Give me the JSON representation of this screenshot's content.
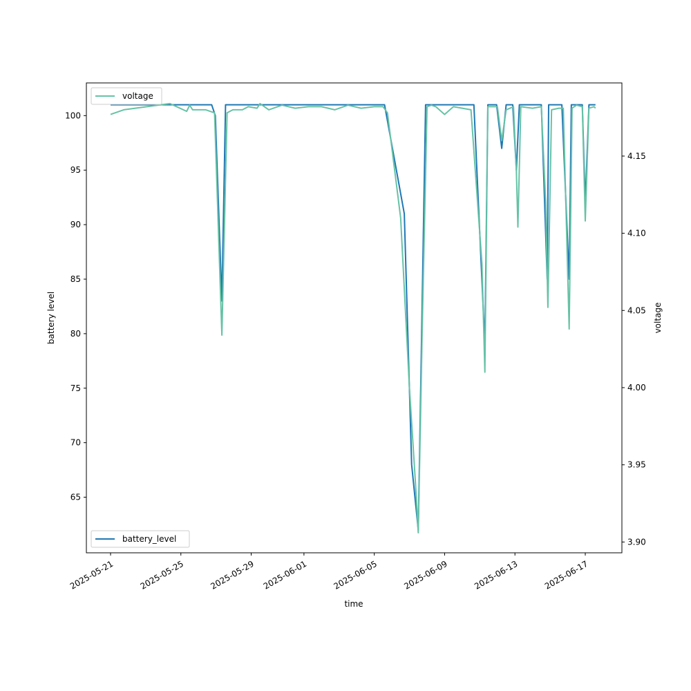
{
  "chart_data": {
    "type": "line",
    "xlabel": "time",
    "ylabel_left": "battery level",
    "ylabel_right": "voltage",
    "x_range": [
      "2025-05-19T15:00",
      "2025-06-19T02:00"
    ],
    "ylim_left": [
      59.9,
      103.0
    ],
    "ylim_right": [
      3.893,
      4.1974
    ],
    "left_ticks": [
      65,
      70,
      75,
      80,
      85,
      90,
      95,
      100
    ],
    "right_ticks": [
      3.9,
      3.95,
      4.0,
      4.05,
      4.1,
      4.15
    ],
    "right_tick_labels": [
      "3.90",
      "3.95",
      "4.00",
      "4.05",
      "4.10",
      "4.15"
    ],
    "x_ticks": [
      "2025-05-21",
      "2025-05-25",
      "2025-05-29",
      "2025-06-01",
      "2025-06-05",
      "2025-06-09",
      "2025-06-13",
      "2025-06-17"
    ],
    "grid": false,
    "colors": {
      "battery_level": "#1f77b4",
      "voltage": "#66c2a5"
    },
    "legend_left": {
      "placement": "lower left",
      "entries": [
        "battery_level"
      ]
    },
    "legend_right": {
      "placement": "upper left",
      "entries": [
        "voltage"
      ]
    },
    "series": [
      {
        "name": "battery_level",
        "axis": "left",
        "points": [
          [
            "2025-05-21T00:00",
            101
          ],
          [
            "2025-05-26T18:00",
            101
          ],
          [
            "2025-05-26T23:00",
            100
          ],
          [
            "2025-05-27T08:00",
            83
          ],
          [
            "2025-05-27T13:00",
            101
          ],
          [
            "2025-06-05T14:00",
            101
          ],
          [
            "2025-06-06T17:00",
            91
          ],
          [
            "2025-06-07T03:00",
            68
          ],
          [
            "2025-06-07T12:00",
            62
          ],
          [
            "2025-06-07T22:00",
            101
          ],
          [
            "2025-06-10T16:00",
            101
          ],
          [
            "2025-06-11T07:00",
            79
          ],
          [
            "2025-06-11T11:00",
            101
          ],
          [
            "2025-06-11T23:00",
            101
          ],
          [
            "2025-06-12T06:00",
            97
          ],
          [
            "2025-06-12T12:00",
            101
          ],
          [
            "2025-06-12T21:00",
            101
          ],
          [
            "2025-06-13T02:00",
            95
          ],
          [
            "2025-06-13T06:00",
            101
          ],
          [
            "2025-06-14T12:00",
            101
          ],
          [
            "2025-06-14T20:00",
            85
          ],
          [
            "2025-06-14T22:00",
            101
          ],
          [
            "2025-06-15T16:00",
            101
          ],
          [
            "2025-06-16T02:00",
            85
          ],
          [
            "2025-06-16T05:00",
            101
          ],
          [
            "2025-06-16T20:00",
            101
          ],
          [
            "2025-06-17T00:00",
            92
          ],
          [
            "2025-06-17T05:00",
            101
          ],
          [
            "2025-06-17T14:00",
            101
          ]
        ]
      },
      {
        "name": "voltage",
        "axis": "right",
        "points": [
          [
            "2025-05-21T00:00",
            4.177
          ],
          [
            "2025-05-21T18:00",
            4.18
          ],
          [
            "2025-05-24T09:00",
            4.184
          ],
          [
            "2025-05-25T08:00",
            4.179
          ],
          [
            "2025-05-25T12:00",
            4.183
          ],
          [
            "2025-05-25T16:00",
            4.18
          ],
          [
            "2025-05-26T10:00",
            4.18
          ],
          [
            "2025-05-26T22:00",
            4.178
          ],
          [
            "2025-05-27T08:00",
            4.034
          ],
          [
            "2025-05-27T15:00",
            4.178
          ],
          [
            "2025-05-27T23:00",
            4.18
          ],
          [
            "2025-05-28T12:00",
            4.18
          ],
          [
            "2025-05-28T20:00",
            4.182
          ],
          [
            "2025-05-29T08:00",
            4.181
          ],
          [
            "2025-05-29T12:00",
            4.184
          ],
          [
            "2025-05-30T00:00",
            4.18
          ],
          [
            "2025-05-30T18:00",
            4.183
          ],
          [
            "2025-05-31T12:00",
            4.181
          ],
          [
            "2025-06-01T06:00",
            4.182
          ],
          [
            "2025-06-02T00:00",
            4.182
          ],
          [
            "2025-06-02T18:00",
            4.18
          ],
          [
            "2025-06-03T12:00",
            4.183
          ],
          [
            "2025-06-04T06:00",
            4.181
          ],
          [
            "2025-06-05T00:00",
            4.182
          ],
          [
            "2025-06-05T12:00",
            4.182
          ],
          [
            "2025-06-05T18:00",
            4.178
          ],
          [
            "2025-06-06T12:00",
            4.11
          ],
          [
            "2025-06-07T00:00",
            4.0
          ],
          [
            "2025-06-07T08:00",
            3.94
          ],
          [
            "2025-06-07T12:00",
            3.906
          ],
          [
            "2025-06-07T18:00",
            4.05
          ],
          [
            "2025-06-08T00:00",
            4.182
          ],
          [
            "2025-06-08T06:00",
            4.183
          ],
          [
            "2025-06-08T12:00",
            4.182
          ],
          [
            "2025-06-09T00:00",
            4.177
          ],
          [
            "2025-06-09T12:00",
            4.182
          ],
          [
            "2025-06-10T00:00",
            4.181
          ],
          [
            "2025-06-10T12:00",
            4.18
          ],
          [
            "2025-06-11T03:00",
            4.08
          ],
          [
            "2025-06-11T07:00",
            4.01
          ],
          [
            "2025-06-11T11:00",
            4.182
          ],
          [
            "2025-06-11T18:00",
            4.182
          ],
          [
            "2025-06-12T00:00",
            4.182
          ],
          [
            "2025-06-12T06:00",
            4.16
          ],
          [
            "2025-06-12T12:00",
            4.18
          ],
          [
            "2025-06-12T22:00",
            4.182
          ],
          [
            "2025-06-13T02:00",
            4.14
          ],
          [
            "2025-06-13T04:00",
            4.104
          ],
          [
            "2025-06-13T08:00",
            4.182
          ],
          [
            "2025-06-14T00:00",
            4.181
          ],
          [
            "2025-06-14T12:00",
            4.182
          ],
          [
            "2025-06-14T18:00",
            4.12
          ],
          [
            "2025-06-14T21:00",
            4.052
          ],
          [
            "2025-06-15T02:00",
            4.18
          ],
          [
            "2025-06-15T12:00",
            4.181
          ],
          [
            "2025-06-15T18:00",
            4.181
          ],
          [
            "2025-06-16T02:00",
            4.038
          ],
          [
            "2025-06-16T06:00",
            4.181
          ],
          [
            "2025-06-16T12:00",
            4.183
          ],
          [
            "2025-06-16T20:00",
            4.182
          ],
          [
            "2025-06-17T00:00",
            4.108
          ],
          [
            "2025-06-17T05:00",
            4.181
          ],
          [
            "2025-06-17T12:00",
            4.182
          ],
          [
            "2025-06-17T14:00",
            4.181
          ]
        ]
      }
    ]
  }
}
